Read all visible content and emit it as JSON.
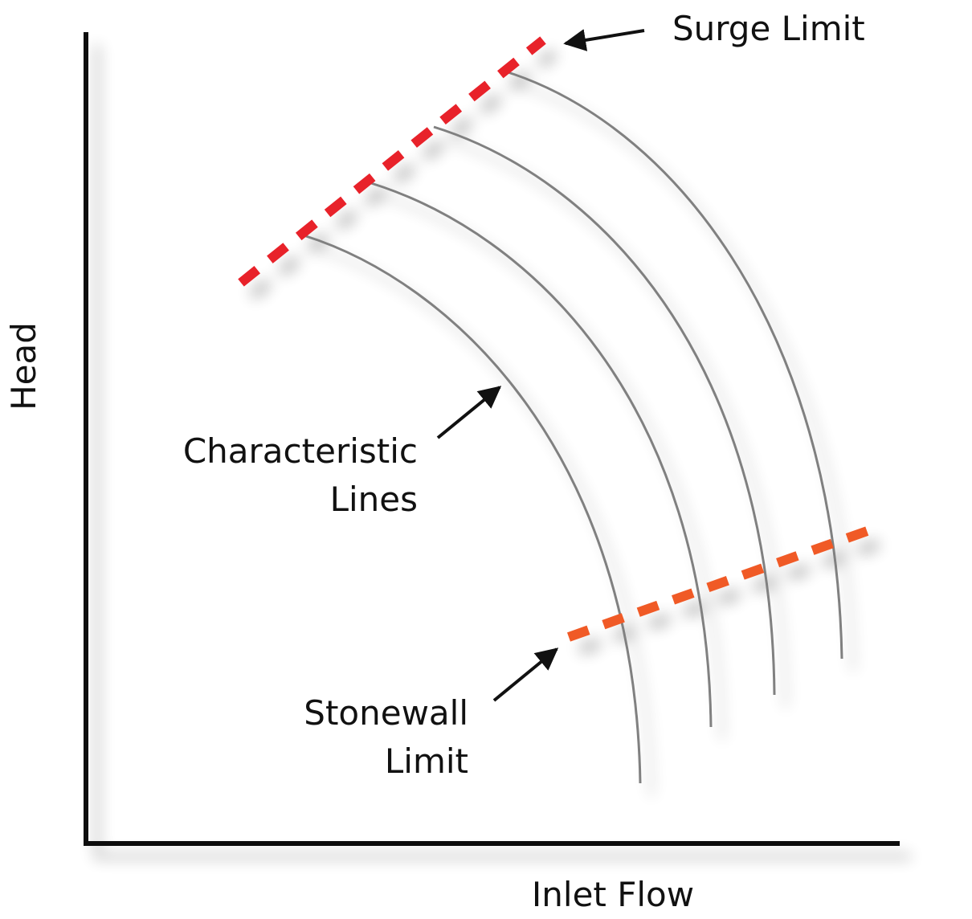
{
  "axes": {
    "x_label": "Inlet Flow",
    "y_label": "Head"
  },
  "annotations": {
    "surge": {
      "lines": [
        "Surge Limit"
      ]
    },
    "characteristic": {
      "lines": [
        "Characteristic",
        "Lines"
      ]
    },
    "stonewall": {
      "lines": [
        "Stonewall",
        "Limit"
      ]
    }
  }
}
